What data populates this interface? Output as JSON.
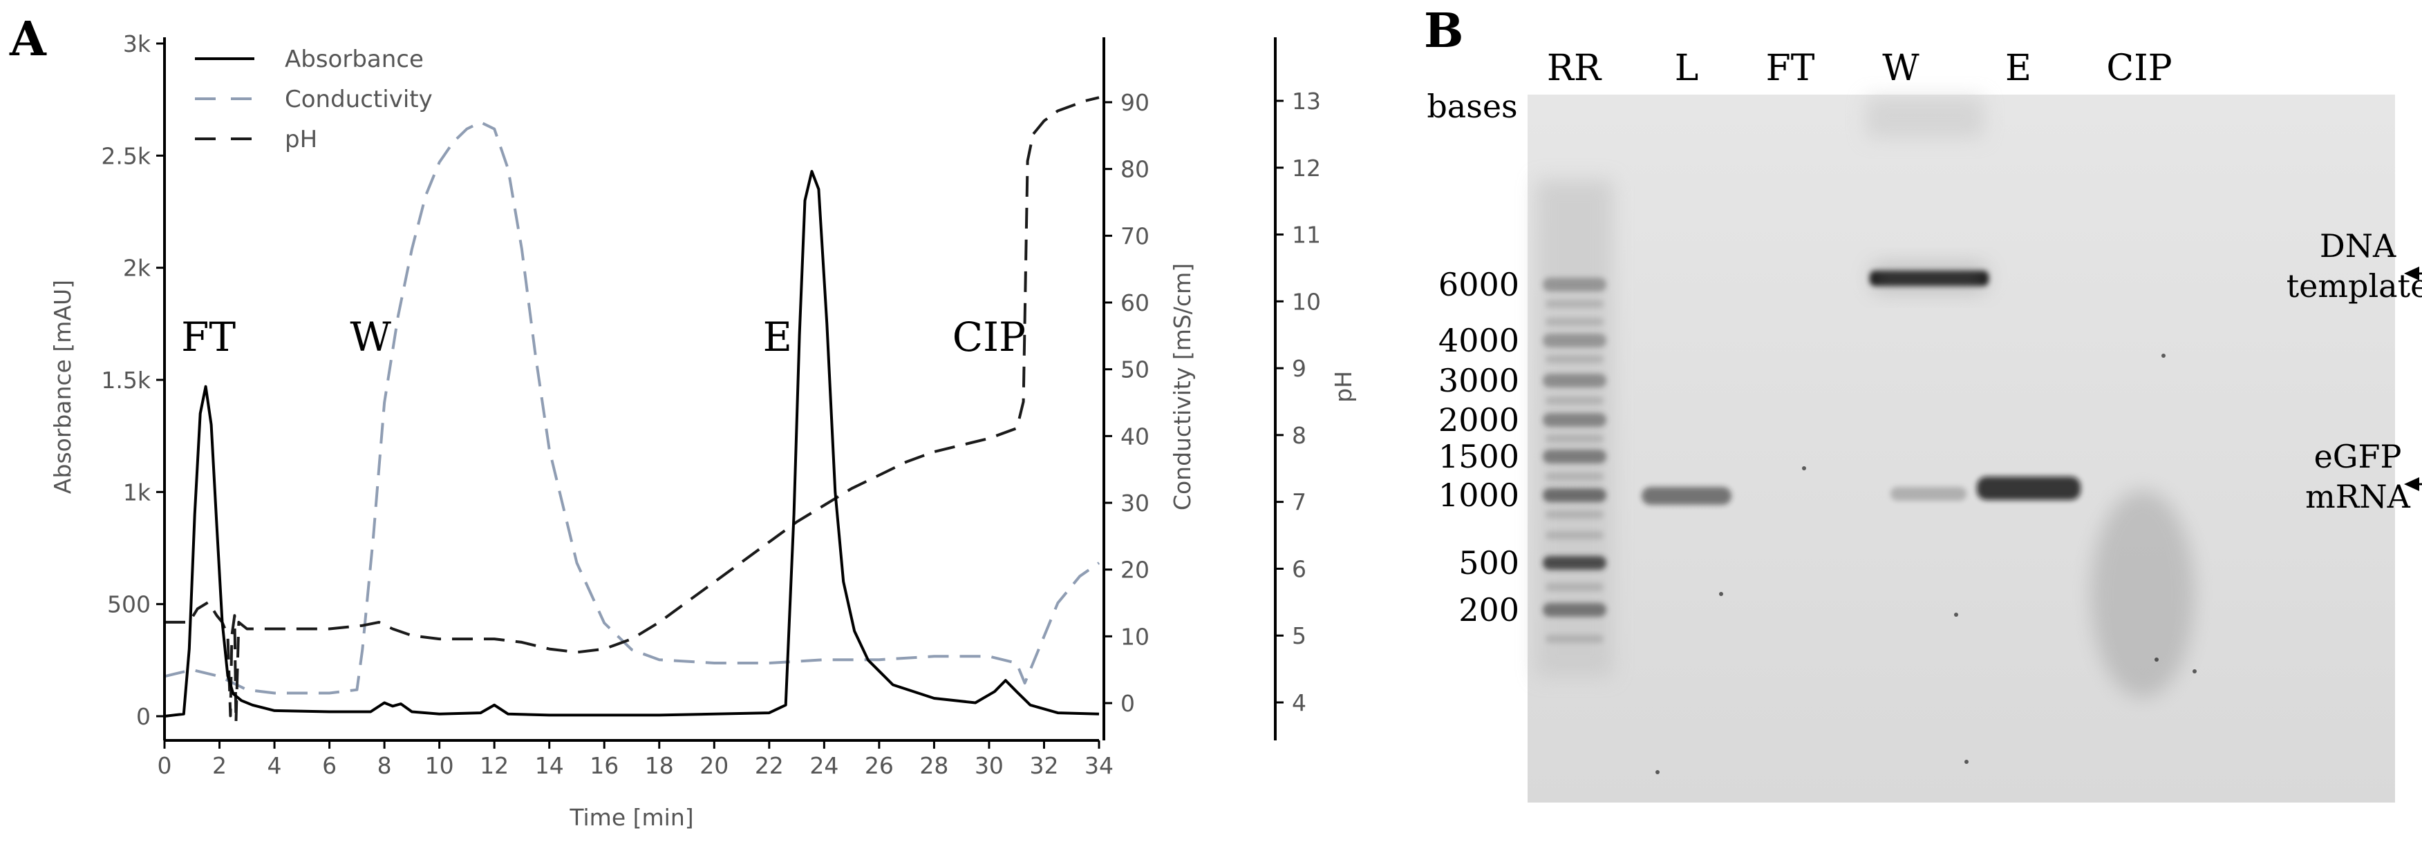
{
  "chart_data": [
    {
      "panel": "A",
      "type": "line",
      "xlabel": "Time [min]",
      "xlim": [
        0,
        34
      ],
      "xticks": [
        "0",
        "2",
        "4",
        "6",
        "8",
        "10",
        "12",
        "14",
        "16",
        "18",
        "20",
        "22",
        "24",
        "26",
        "28",
        "30",
        "32",
        "34"
      ],
      "axes": {
        "absorbance": {
          "label": "Absorbance [mAU]",
          "lim": [
            0,
            3000
          ],
          "ticks": [
            "0",
            "500",
            "1k",
            "1.5k",
            "2k",
            "2.5k",
            "3k"
          ],
          "tick_values": [
            0,
            500,
            1000,
            1500,
            2000,
            2500,
            3000
          ]
        },
        "conductivity": {
          "label": "Conductivity [mS/cm]",
          "lim": [
            -5,
            95
          ],
          "ticks": [
            "0",
            "10",
            "20",
            "30",
            "40",
            "50",
            "60",
            "70",
            "80",
            "90"
          ],
          "tick_values": [
            0,
            10,
            20,
            30,
            40,
            50,
            60,
            70,
            80,
            90
          ]
        },
        "ph": {
          "label": "pH",
          "lim": [
            3.5,
            13.8
          ],
          "ticks": [
            "4",
            "5",
            "6",
            "7",
            "8",
            "9",
            "10",
            "11",
            "12",
            "13"
          ],
          "tick_values": [
            4,
            5,
            6,
            7,
            8,
            9,
            10,
            11,
            12,
            13
          ]
        }
      },
      "legend": {
        "placement": "top-left",
        "entries": [
          "Absorbance",
          "Conductivity",
          "pH"
        ]
      },
      "series": [
        {
          "name": "Absorbance",
          "axis": "absorbance",
          "color": "#000000",
          "style": "solid",
          "x": [
            0,
            0.7,
            0.9,
            1.1,
            1.3,
            1.5,
            1.7,
            1.9,
            2.1,
            2.3,
            2.5,
            2.8,
            3.2,
            4,
            6,
            7.5,
            8,
            8.3,
            8.6,
            9,
            10,
            11.5,
            12,
            12.5,
            14,
            18,
            22,
            22.6,
            22.9,
            23.1,
            23.3,
            23.55,
            23.8,
            24.1,
            24.4,
            24.7,
            25.1,
            25.6,
            26.5,
            28,
            29.5,
            30.2,
            30.6,
            31,
            31.5,
            32.5,
            34
          ],
          "y": [
            0,
            10,
            300,
            900,
            1350,
            1470,
            1300,
            850,
            420,
            180,
            100,
            70,
            50,
            25,
            20,
            20,
            60,
            45,
            55,
            20,
            10,
            15,
            50,
            10,
            5,
            5,
            15,
            50,
            900,
            1700,
            2300,
            2430,
            2350,
            1750,
            1000,
            600,
            380,
            250,
            140,
            80,
            60,
            110,
            160,
            110,
            50,
            15,
            10
          ]
        },
        {
          "name": "Conductivity",
          "axis": "conductivity",
          "color": "#8f9db3",
          "style": "dashed",
          "x": [
            0,
            1,
            2,
            2.5,
            3,
            4,
            5,
            6,
            7,
            7.2,
            7.6,
            8,
            8.5,
            9,
            9.5,
            10,
            10.5,
            11,
            11.5,
            12,
            12.5,
            13,
            13.5,
            14,
            15,
            16,
            17,
            18,
            20,
            22,
            24,
            26,
            28,
            30,
            31,
            31.3,
            31.8,
            32.5,
            33.3,
            34
          ],
          "y": [
            4,
            5,
            4,
            3,
            2,
            1.5,
            1.5,
            1.5,
            2,
            8,
            25,
            45,
            58,
            68,
            76,
            81,
            84,
            86,
            87,
            86,
            80,
            68,
            52,
            38,
            21,
            12,
            8,
            6.5,
            6,
            6,
            6.5,
            6.5,
            7,
            7,
            6,
            3,
            8,
            15,
            19,
            21
          ]
        },
        {
          "name": "pH",
          "axis": "ph",
          "color": "#1a1a1a",
          "style": "dashed",
          "x": [
            0,
            0.9,
            1.2,
            1.6,
            1.9,
            2.1,
            2.3,
            2.4,
            2.45,
            2.55,
            2.6,
            2.7,
            3,
            4,
            6,
            7.2,
            7.8,
            8.3,
            9,
            10,
            12,
            13,
            14,
            15,
            16,
            17,
            18,
            19,
            20,
            21,
            22,
            23,
            24,
            25,
            26,
            27,
            28,
            29,
            30,
            31,
            31.1,
            31.25,
            31.4,
            31.6,
            32,
            32.5,
            33.5,
            34
          ],
          "y": [
            5.2,
            5.2,
            5.4,
            5.5,
            5.3,
            5.2,
            5.0,
            3.8,
            5.0,
            5.3,
            3.7,
            5.2,
            5.1,
            5.1,
            5.1,
            5.15,
            5.2,
            5.1,
            5.0,
            4.95,
            4.95,
            4.9,
            4.8,
            4.75,
            4.8,
            4.95,
            5.2,
            5.5,
            5.8,
            6.1,
            6.4,
            6.7,
            6.95,
            7.2,
            7.4,
            7.6,
            7.75,
            7.85,
            7.95,
            8.1,
            8.25,
            8.5,
            12.1,
            12.5,
            12.7,
            12.85,
            13.0,
            13.05
          ]
        }
      ],
      "annotations": [
        {
          "text": "FT",
          "x": 1.6,
          "y": 1630
        },
        {
          "text": "W",
          "x": 7.5,
          "y": 1630
        },
        {
          "text": "E",
          "x": 22.3,
          "y": 1630
        },
        {
          "text": "CIP",
          "x": 30,
          "y": 1630
        }
      ]
    },
    {
      "panel": "B",
      "type": "gel",
      "lanes": [
        "RR",
        "L",
        "FT",
        "W",
        "E",
        "CIP"
      ],
      "size_label": "bases",
      "ladder_sizes": [
        "6000",
        "4000",
        "3000",
        "2000",
        "1500",
        "1000",
        "500",
        "200"
      ],
      "annotations": [
        {
          "lines": [
            "DNA",
            "template"
          ],
          "size": "6000"
        },
        {
          "lines": [
            "eGFP",
            "mRNA"
          ],
          "size": "1000"
        }
      ]
    }
  ]
}
